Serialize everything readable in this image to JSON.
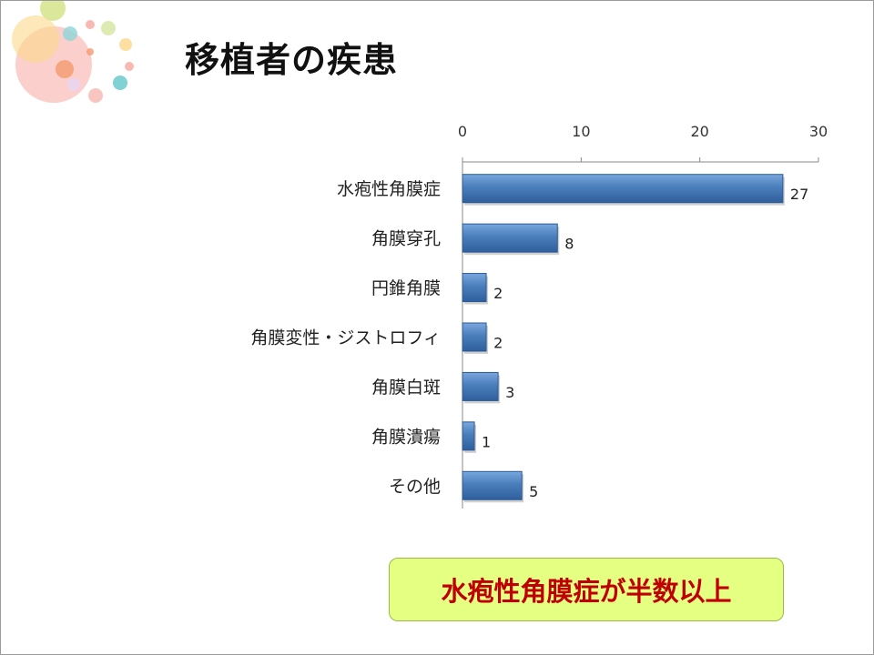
{
  "slide": {
    "title": "移植者の疾患",
    "callout": "水疱性角膜症が半数以上"
  },
  "colors": {
    "bar": "#4a7ebb",
    "bar_dark": "#2c5a96",
    "callout_bg": "#e5ff82",
    "callout_text": "#c00000"
  },
  "chart_data": {
    "type": "bar",
    "orientation": "horizontal",
    "categories": [
      "水疱性角膜症",
      "角膜穿孔",
      "円錐角膜",
      "角膜変性・ジストロフィ",
      "角膜白斑",
      "角膜潰瘍",
      "その他"
    ],
    "values": [
      27,
      8,
      2,
      2,
      3,
      1,
      5
    ],
    "xlim": [
      0,
      30
    ],
    "xticks": [
      0,
      10,
      20,
      30
    ],
    "xaxis_position": "top",
    "data_labels": true,
    "legend": "none",
    "grid": false,
    "title": "",
    "xlabel": "",
    "ylabel": ""
  }
}
